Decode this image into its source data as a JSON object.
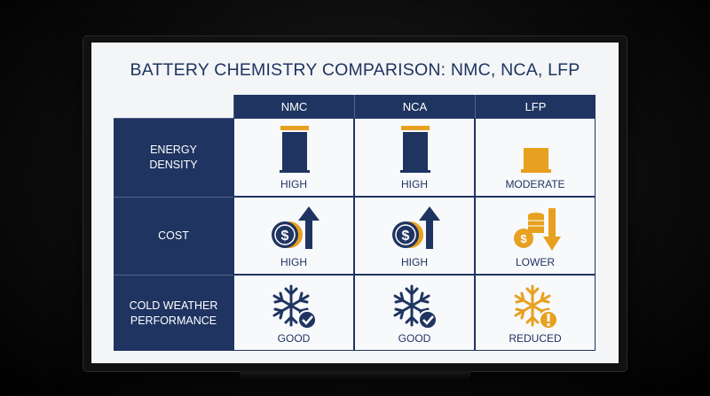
{
  "title": "BATTERY CHEMISTRY COMPARISON: NMC, NCA, LFP",
  "table": {
    "columns": [
      "NMC",
      "NCA",
      "LFP"
    ],
    "rows": [
      {
        "label": "ENERGY DENSITY",
        "cells": [
          "HIGH",
          "HIGH",
          "MODERATE"
        ]
      },
      {
        "label": "COST",
        "cells": [
          "HIGH",
          "HIGH",
          "LOWER"
        ]
      },
      {
        "label": "COLD WEATHER PERFORMANCE",
        "cells": [
          "GOOD",
          "GOOD",
          "REDUCED"
        ]
      }
    ]
  }
}
